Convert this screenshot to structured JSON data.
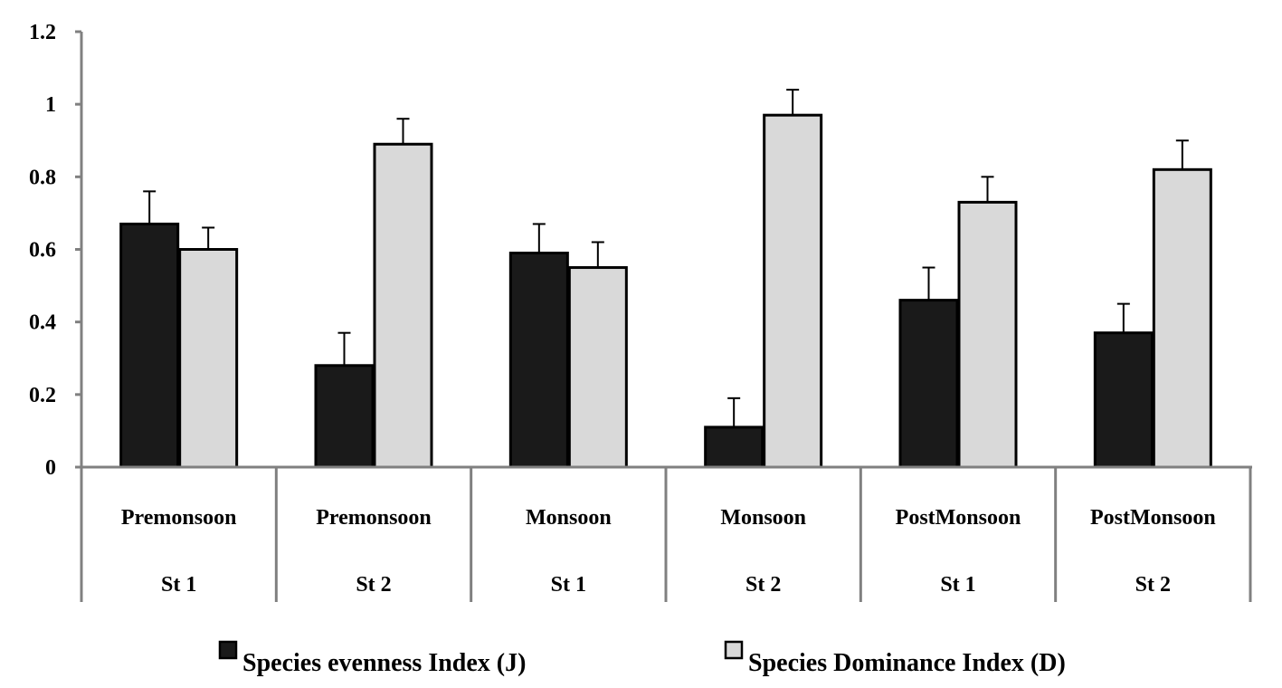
{
  "chart_data": {
    "type": "bar",
    "title": "",
    "xlabel": "",
    "ylabel": "",
    "ylim": [
      0,
      1.2
    ],
    "yticks": [
      0,
      0.2,
      0.4,
      0.6,
      0.8,
      1,
      1.2
    ],
    "ytick_labels": [
      "0",
      "0.2",
      "0.4",
      "0.6",
      "0.8",
      "1",
      "1.2"
    ],
    "grid": false,
    "legend_position": "bottom",
    "categories": [
      {
        "season": "Premonsoon",
        "station": "St 1"
      },
      {
        "season": "Premonsoon",
        "station": "St 2"
      },
      {
        "season": "Monsoon",
        "station": "St 1"
      },
      {
        "season": "Monsoon",
        "station": "St 2"
      },
      {
        "season": "PostMonsoon",
        "station": "St 1"
      },
      {
        "season": "PostMonsoon",
        "station": "St 2"
      }
    ],
    "series": [
      {
        "name": "Species evenness Index (J)",
        "color": "#1a1a1a",
        "values": [
          0.67,
          0.28,
          0.59,
          0.11,
          0.46,
          0.37
        ],
        "errors": [
          0.09,
          0.09,
          0.08,
          0.08,
          0.09,
          0.08
        ]
      },
      {
        "name": "Species Dominance Index (D)",
        "color": "#d9d9d9",
        "values": [
          0.6,
          0.89,
          0.55,
          0.97,
          0.73,
          0.82
        ],
        "errors": [
          0.06,
          0.07,
          0.07,
          0.07,
          0.07,
          0.08
        ]
      }
    ]
  }
}
